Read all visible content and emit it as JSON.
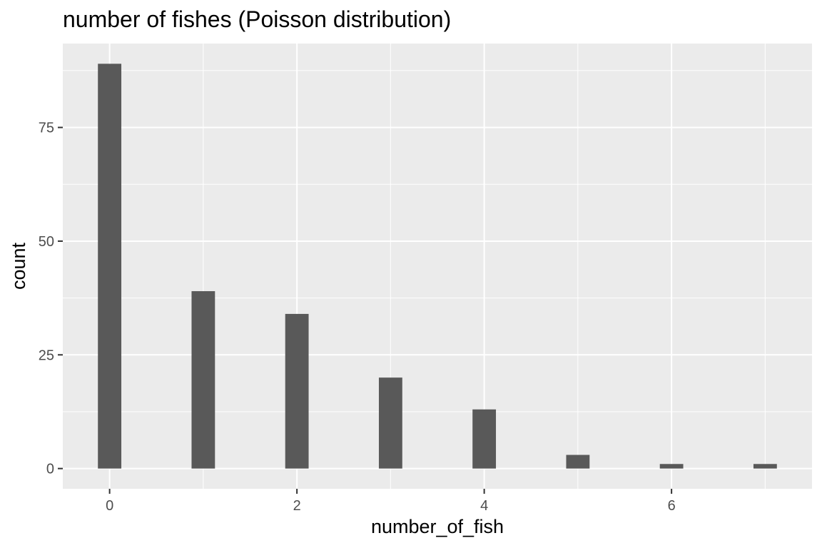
{
  "chart_data": {
    "type": "bar",
    "title": "number of fishes (Poisson distribution)",
    "xlabel": "number_of_fish",
    "ylabel": "count",
    "x": [
      0,
      1,
      2,
      3,
      4,
      5,
      6,
      7
    ],
    "values": [
      89,
      39,
      34,
      20,
      13,
      3,
      1,
      1
    ],
    "xlim": [
      -0.5,
      7.5
    ],
    "ylim": [
      -4.45,
      93.45
    ],
    "x_ticks": [
      0,
      2,
      4,
      6
    ],
    "x_tick_labels": [
      "0",
      "2",
      "4",
      "6"
    ],
    "y_ticks": [
      0,
      25,
      50,
      75
    ],
    "y_tick_labels": [
      "0",
      "25",
      "50",
      "75"
    ],
    "grid": true,
    "legend": "none",
    "colors": {
      "bar": "#595959",
      "panel": "#ebebeb",
      "grid": "#ffffff",
      "tick_label": "#4d4d4d",
      "tick_mark": "#333333"
    }
  }
}
